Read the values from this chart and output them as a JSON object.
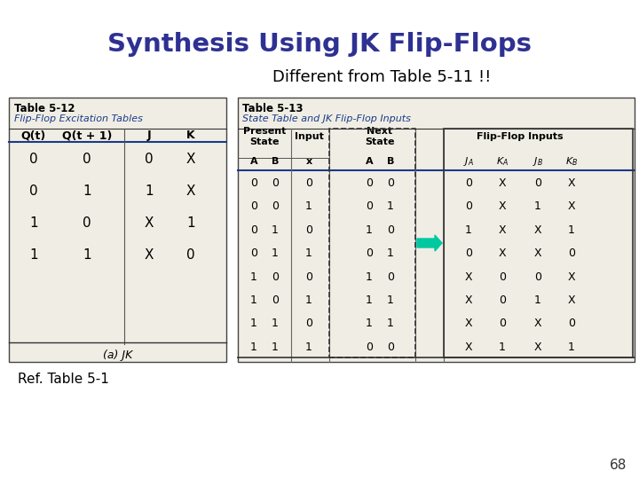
{
  "title": "Synthesis Using JK Flip-Flops",
  "subtitle": "Different from Table 5-11 !!",
  "ref_text": "Ref. Table 5-1",
  "page_number": "68",
  "title_color": "#2e3192",
  "subtitle_color": "#000000",
  "bg_color": "#ffffff",
  "table1_title1": "Table 5-12",
  "table1_title2": "Flip-Flop Excitation Tables",
  "table1_headers": [
    "Q(t)",
    "Q(t + 1)",
    "J",
    "K"
  ],
  "table1_data": [
    [
      "0",
      "0",
      "0",
      "X"
    ],
    [
      "0",
      "1",
      "1",
      "X"
    ],
    [
      "1",
      "0",
      "X",
      "1"
    ],
    [
      "1",
      "1",
      "X",
      "0"
    ]
  ],
  "table1_footer": "(a) JK",
  "table2_title1": "Table 5-13",
  "table2_title2": "State Table and JK Flip-Flop Inputs",
  "table2_data": [
    [
      "0",
      "0",
      "0",
      "0",
      "0",
      "0",
      "X",
      "0",
      "X"
    ],
    [
      "0",
      "0",
      "1",
      "0",
      "1",
      "0",
      "X",
      "1",
      "X"
    ],
    [
      "0",
      "1",
      "0",
      "1",
      "0",
      "1",
      "X",
      "X",
      "1"
    ],
    [
      "0",
      "1",
      "1",
      "0",
      "1",
      "0",
      "X",
      "X",
      "0"
    ],
    [
      "1",
      "0",
      "0",
      "1",
      "0",
      "X",
      "0",
      "0",
      "X"
    ],
    [
      "1",
      "0",
      "1",
      "1",
      "1",
      "X",
      "0",
      "1",
      "X"
    ],
    [
      "1",
      "1",
      "0",
      "1",
      "1",
      "X",
      "0",
      "X",
      "0"
    ],
    [
      "1",
      "1",
      "1",
      "0",
      "0",
      "X",
      "1",
      "X",
      "1"
    ]
  ],
  "arrow_color": "#00c8a0",
  "table_bg": "#f0ede4",
  "table_edge": "#444444",
  "header_line": "#1a3a8a",
  "text_blue": "#1a3a8a"
}
